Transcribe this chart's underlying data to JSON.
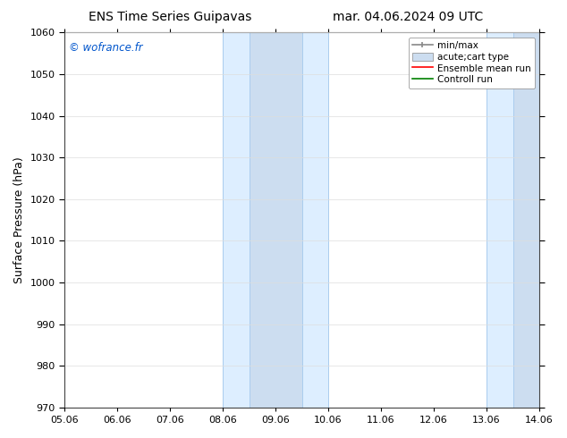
{
  "title_left": "ENS Time Series Guipavas",
  "title_right": "mar. 04.06.2024 09 UTC",
  "ylabel": "Surface Pressure (hPa)",
  "ylim": [
    970,
    1060
  ],
  "yticks": [
    970,
    980,
    990,
    1000,
    1010,
    1020,
    1030,
    1040,
    1050,
    1060
  ],
  "xtick_labels": [
    "05.06",
    "06.06",
    "07.06",
    "08.06",
    "09.06",
    "10.06",
    "11.06",
    "12.06",
    "13.06",
    "14.06"
  ],
  "xtick_positions": [
    0,
    1,
    2,
    3,
    4,
    5,
    6,
    7,
    8,
    9
  ],
  "xlim": [
    0,
    9
  ],
  "watermark": "© wofrance.fr",
  "watermark_color": "#0055cc",
  "shaded_outer_1": {
    "x_start": 3.0,
    "x_end": 5.0,
    "color": "#ddeeff"
  },
  "shaded_inner_1": {
    "x_start": 3.5,
    "x_end": 4.5,
    "color": "#ccddf0"
  },
  "shaded_outer_2": {
    "x_start": 8.0,
    "x_end": 9.0,
    "color": "#ddeeff"
  },
  "shaded_inner_2": {
    "x_start": 8.5,
    "x_end": 9.0,
    "color": "#ccddf0"
  },
  "divider_color": "#aaccee",
  "divider_positions": [
    3.0,
    3.5,
    4.5,
    5.0,
    8.0,
    8.5,
    9.0
  ],
  "legend_minmax_color": "#888888",
  "legend_box_color": "#ccddf0",
  "legend_box_edge": "#888888",
  "legend_ens_color": "red",
  "legend_ctrl_color": "green",
  "background_color": "#ffffff",
  "plot_bg_color": "#ffffff",
  "grid_color": "#dddddd",
  "border_color": "#444444",
  "title_fontsize": 10,
  "tick_fontsize": 8,
  "ylabel_fontsize": 9
}
